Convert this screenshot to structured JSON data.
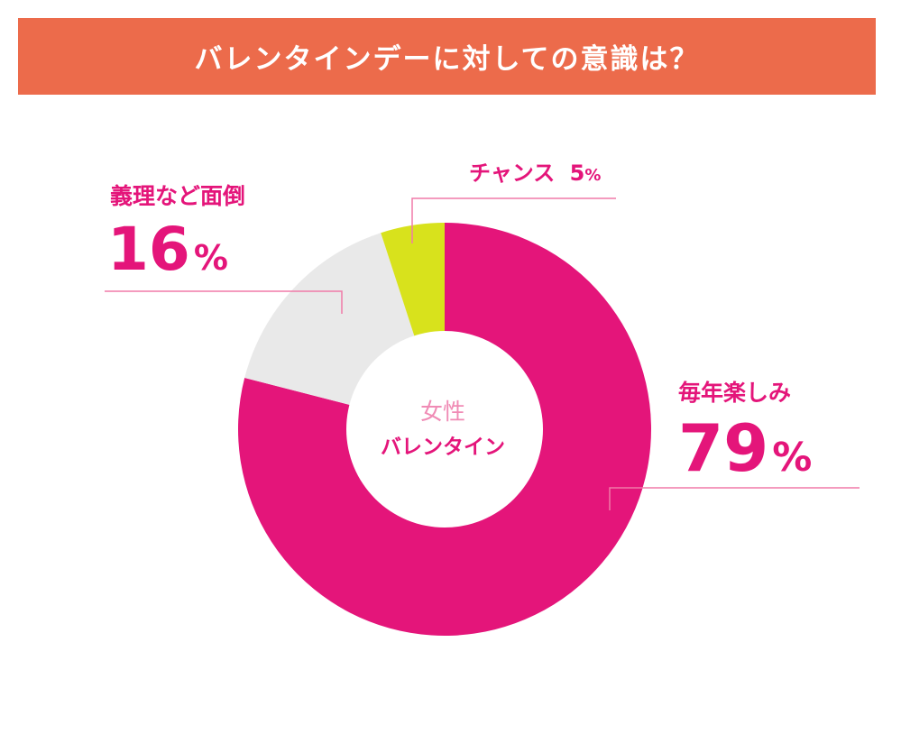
{
  "banner": {
    "title": "バレンタインデーに対しての意識は？"
  },
  "colors": {
    "banner": "#ec6b4b",
    "magenta": "#e4157a",
    "light_gray": "#e9e9e9",
    "lime": "#d8e21c",
    "leader_pink": "#f07aa8",
    "center_title_pink": "#f08bb5"
  },
  "chart_data": {
    "type": "pie",
    "center_label": {
      "line1": "女性",
      "line2": "バレンタイン"
    },
    "slices": [
      {
        "label": "毎年楽しみ",
        "value": 79,
        "value_text": "79",
        "unit": "%",
        "color": "#e4157a"
      },
      {
        "label": "義理など面倒",
        "value": 16,
        "value_text": "16",
        "unit": "%",
        "color": "#e9e9e9"
      },
      {
        "label": "チャンス",
        "value": 5,
        "value_text": "5",
        "unit": "%",
        "color": "#d8e21c"
      }
    ]
  }
}
